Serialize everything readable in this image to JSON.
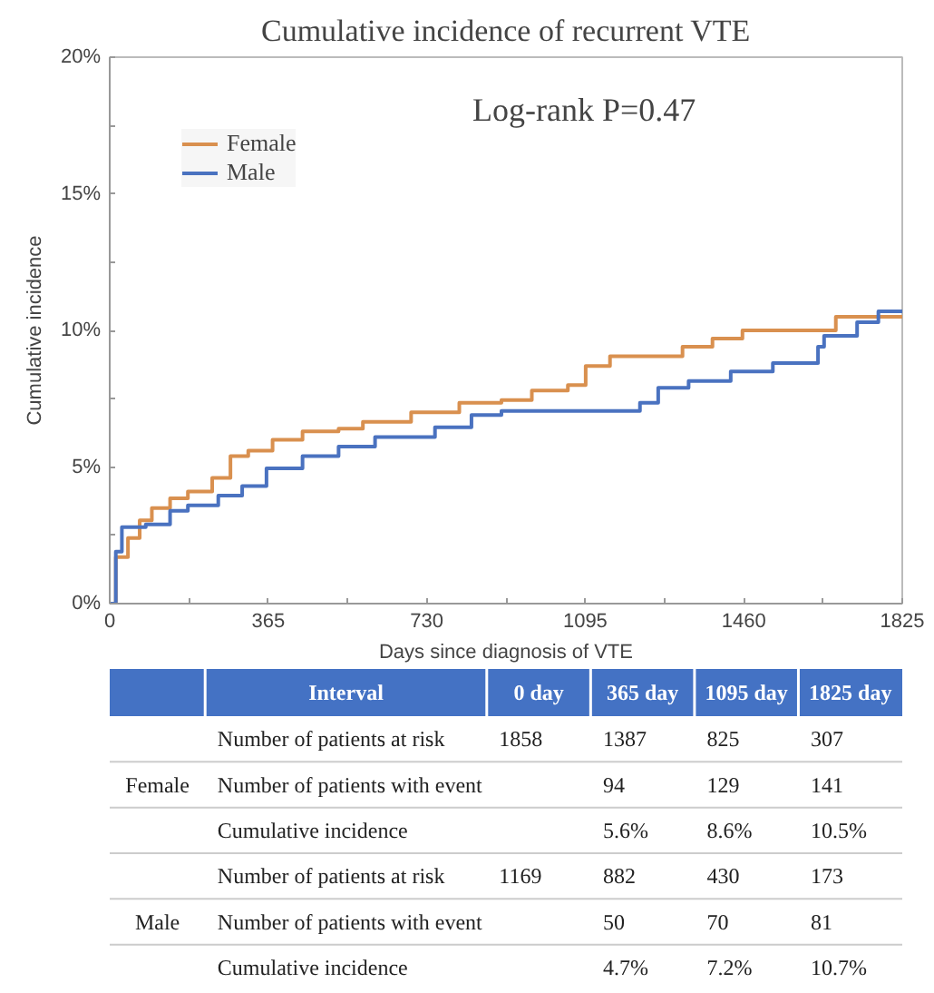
{
  "chart_data": [
    {
      "type": "step",
      "title": "Cumulative incidence of recurrent VTE",
      "xlabel": "Days since diagnosis of VTE",
      "ylabel": "Cumulative incidence",
      "xlim": [
        0,
        1825
      ],
      "ylim": [
        0,
        20
      ],
      "xticks": [
        0,
        {
          "value": 182.5,
          "label": null
        },
        365,
        {
          "value": 547.5,
          "label": null
        },
        730,
        {
          "value": 912.5,
          "label": null
        },
        1095,
        {
          "value": 1277.5,
          "label": null
        },
        1460,
        {
          "value": 1642.5,
          "label": null
        },
        1825
      ],
      "yticks": [
        {
          "value": 0,
          "label": "0%"
        },
        {
          "value": 2.5,
          "label": null
        },
        {
          "value": 5,
          "label": "5%"
        },
        {
          "value": 7.5,
          "label": null
        },
        {
          "value": 10,
          "label": "10%"
        },
        {
          "value": 12.5,
          "label": null
        },
        {
          "value": 15,
          "label": "15%"
        },
        {
          "value": 17.5,
          "label": null
        },
        {
          "value": 20,
          "label": "20%"
        }
      ],
      "legend": "top left",
      "grid": false,
      "annotations": [
        "Log-rank P=0.47"
      ],
      "series": [
        {
          "name": "Female",
          "color": "#d9904f",
          "x": [
            0,
            14,
            42,
            69,
            97,
            139,
            180,
            236,
            278,
            319,
            375,
            444,
            527,
            583,
            694,
            805,
            902,
            972,
            1055,
            1096,
            1152,
            1249,
            1319,
            1388,
            1457,
            1652,
            1672,
            1825
          ],
          "values": [
            0,
            1.7,
            2.4,
            3.05,
            3.5,
            3.85,
            4.1,
            4.6,
            5.4,
            5.6,
            6.0,
            6.3,
            6.4,
            6.65,
            7.0,
            7.35,
            7.45,
            7.8,
            8.0,
            8.7,
            9.05,
            9.05,
            9.4,
            9.7,
            10.0,
            10.0,
            10.5,
            10.5
          ]
        },
        {
          "name": "Male",
          "color": "#4a72c0",
          "x": [
            0,
            14,
            28,
            83,
            139,
            180,
            250,
            305,
            361,
            444,
            527,
            611,
            749,
            833,
            902,
            1166,
            1221,
            1263,
            1333,
            1430,
            1527,
            1589,
            1631,
            1645,
            1721,
            1770,
            1825
          ],
          "values": [
            0,
            1.9,
            2.8,
            2.9,
            3.4,
            3.6,
            3.95,
            4.3,
            4.95,
            5.4,
            5.75,
            6.1,
            6.45,
            6.9,
            7.05,
            7.05,
            7.35,
            7.9,
            8.15,
            8.5,
            8.8,
            8.8,
            9.4,
            9.8,
            10.3,
            10.7,
            10.7
          ]
        }
      ]
    },
    {
      "type": "other",
      "xlabel": "Interval",
      "color": "#4472c4",
      "categories": [
        "0 day",
        "365 day",
        "1095 day",
        "1825 day"
      ],
      "y_categories": [
        "Number of patients at risk",
        "Number of patients with event",
        "Cumulative incidence",
        "Number of patients at risk",
        "Number of patients with event",
        "Cumulative incidence"
      ],
      "y2_categories": [
        null,
        "Female",
        null,
        null,
        "Male",
        null
      ],
      "cell_labels": [
        [
          "1858",
          "1387",
          "825",
          "307"
        ],
        [
          null,
          "94",
          "129",
          "141"
        ],
        [
          null,
          "5.6%",
          "8.6%",
          "10.5%"
        ],
        [
          "1169",
          "882",
          "430",
          "173"
        ],
        [
          null,
          "50",
          "70",
          "81"
        ],
        [
          null,
          "4.7%",
          "7.2%",
          "10.7%"
        ]
      ]
    }
  ]
}
